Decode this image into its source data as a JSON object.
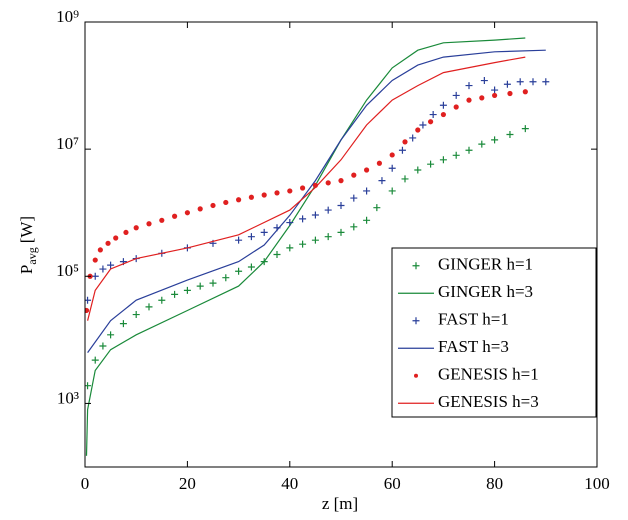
{
  "chart_data": {
    "type": "line",
    "log_y": true,
    "xlabel": "z [m]",
    "ylabel": {
      "main": "P",
      "sub": "avg",
      "unit": "[W]"
    },
    "xlim": [
      0,
      100
    ],
    "xticks": [
      0,
      20,
      40,
      60,
      80,
      100
    ],
    "ylim": [
      100,
      1000000000
    ],
    "yticks": [
      {
        "value": 1000,
        "label": "10³"
      },
      {
        "value": 100000,
        "label": "10⁵"
      },
      {
        "value": 10000000,
        "label": "10⁷"
      },
      {
        "value": 1000000000,
        "label": "10⁹"
      }
    ],
    "legend": "lower right",
    "series": [
      {
        "name": "GINGER h=1",
        "color": "#1a8a3a",
        "marker": "+",
        "x": [
          0.5,
          2,
          3.5,
          5,
          7.5,
          10,
          12.5,
          15,
          17.5,
          20,
          22.5,
          25,
          27.5,
          30,
          32.5,
          35,
          37.5,
          40,
          42.5,
          45,
          47.5,
          50,
          52.5,
          55,
          57,
          60,
          62.5,
          65,
          67.5,
          70,
          72.5,
          75,
          77.5,
          80,
          83,
          86
        ],
        "values": [
          1900,
          4800,
          8000,
          12000,
          18000,
          25000,
          33000,
          42000,
          52000,
          60000,
          70000,
          78000,
          95000,
          120000,
          140000,
          170000,
          220000,
          280000,
          320000,
          370000,
          420000,
          490000,
          600000,
          760000,
          1200000,
          2200000,
          3400000,
          4700000,
          5800000,
          6800000,
          8000000,
          9600000,
          12000000,
          14000000,
          17000000,
          21000000
        ]
      },
      {
        "name": "GINGER h=3",
        "color": "#1a8a3a",
        "marker": "none",
        "x": [
          0.3,
          0.5,
          2,
          5,
          10,
          20,
          30,
          35,
          40,
          45,
          50,
          55,
          60,
          65,
          70,
          80,
          86
        ],
        "values": [
          150,
          800,
          3300,
          7000,
          12000,
          29000,
          70000,
          170000,
          630000,
          2700000,
          14000000,
          59000000,
          190000000,
          360000000,
          470000000,
          520000000,
          560000000
        ]
      },
      {
        "name": "FAST h=1",
        "color": "#2a3f9a",
        "marker": "+",
        "x": [
          0.5,
          2,
          3.5,
          5,
          7.5,
          10,
          15,
          20,
          25,
          30,
          32.5,
          35,
          37.5,
          40,
          42.5,
          45,
          47.5,
          50,
          52.5,
          55,
          58,
          60,
          62,
          64,
          66,
          68,
          70,
          72.5,
          75,
          78,
          80,
          82.5,
          85,
          87.5,
          90
        ],
        "values": [
          42000,
          100000,
          130000,
          150000,
          170000,
          190000,
          230000,
          280000,
          330000,
          370000,
          420000,
          490000,
          580000,
          700000,
          800000,
          920000,
          1100000,
          1300000,
          1700000,
          2200000,
          3200000,
          5000000,
          9600000,
          15000000,
          24000000,
          35000000,
          49000000,
          70000000,
          100000000,
          120000000,
          85000000,
          105000000,
          115000000,
          115000000,
          115000000
        ]
      },
      {
        "name": "FAST h=3",
        "color": "#2a3f9a",
        "marker": "none",
        "x": [
          0.5,
          5,
          10,
          20,
          30,
          35,
          40,
          45,
          50,
          55,
          60,
          65,
          70,
          80,
          90
        ],
        "values": [
          6300,
          20000,
          42000,
          87000,
          170000,
          310000,
          910000,
          3200000,
          14000000,
          49000000,
          120000000,
          210000000,
          280000000,
          340000000,
          360000000
        ]
      },
      {
        "name": "GENESIS h=1",
        "color": "#e02020",
        "marker": ".",
        "x": [
          0.3,
          1,
          2,
          3,
          4.5,
          6,
          8,
          10,
          12.5,
          15,
          17.5,
          20,
          22.5,
          25,
          27.5,
          30,
          32.5,
          35,
          37.5,
          40,
          42.5,
          45,
          47.5,
          50,
          52.5,
          55,
          57.5,
          60,
          62.5,
          65,
          67.5,
          70,
          72.5,
          75,
          77.5,
          80,
          83,
          86
        ],
        "values": [
          29000,
          100000,
          180000,
          260000,
          330000,
          400000,
          490000,
          580000,
          670000,
          760000,
          880000,
          1000000,
          1150000,
          1300000,
          1450000,
          1600000,
          1750000,
          1900000,
          2050000,
          2200000,
          2450000,
          2700000,
          2950000,
          3200000,
          3900000,
          4700000,
          6000000,
          8100000,
          13000000,
          20000000,
          27000000,
          35000000,
          46000000,
          59000000,
          64000000,
          70000000,
          75000000,
          80000000
        ]
      },
      {
        "name": "GENESIS h=3",
        "color": "#e02020",
        "marker": "none",
        "x": [
          0.5,
          2,
          5,
          10,
          20,
          30,
          40,
          45,
          50,
          55,
          60,
          65,
          70,
          80,
          86
        ],
        "values": [
          20000,
          60000,
          130000,
          190000,
          280000,
          450000,
          1100000,
          2500000,
          6800000,
          24000000,
          59000000,
          100000000,
          160000000,
          230000000,
          280000000
        ]
      }
    ]
  }
}
